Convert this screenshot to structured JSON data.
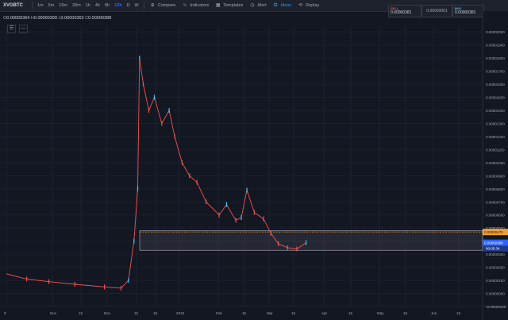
{
  "symbol": "XVGBTC",
  "timeframes": [
    "1m",
    "5m",
    "15m",
    "30m",
    "1h",
    "4h",
    "8h",
    "12h",
    "D",
    "W"
  ],
  "active_timeframe": "12h",
  "tools": {
    "compare": "Compare",
    "indicators": "Indicators",
    "templates": "Templates",
    "alert": "Alert",
    "ideas": "Ideas",
    "replay": "Replay"
  },
  "trade": {
    "sell_label": "SELL",
    "sell_price": "0.00000381",
    "spread": "0.00000001",
    "buy_label": "BUY",
    "buy_price": "0.00000381"
  },
  "legend": {
    "o_label": "O",
    "o": "0.00000364",
    "h_label": "H",
    "h": "0.00000399",
    "l_label": "L",
    "l": "0.00000363",
    "c_label": "C",
    "c": "0.00000388"
  },
  "colors": {
    "up": "#4fc3f7",
    "down": "#ef5350",
    "accent": "#2962ff",
    "resistance": "#f0a032",
    "box": "#2a2e39"
  },
  "chart_data": {
    "type": "line",
    "title": "",
    "x_ticks": [
      "9",
      "Nov",
      "15",
      "Dec",
      "15",
      "18",
      "2018",
      "Feb",
      "15",
      "Mar",
      "15",
      "Apr",
      "16",
      "May",
      "15",
      "Jun",
      "15"
    ],
    "y_ticks": [
      "0.00002000",
      "0.00001900",
      "0.00001800",
      "0.00001700",
      "0.00001600",
      "0.00001500",
      "0.00001400",
      "0.00001300",
      "0.00001200",
      "0.00001100",
      "0.00001000",
      "0.00000900",
      "0.00000800",
      "0.00000700",
      "0.00000600",
      "0.00000500",
      "0.00000400",
      "0.00000300",
      "0.00000200",
      "0.00000100",
      "0.00000000",
      "-0.00000100"
    ],
    "ylim": [
      -1e-06,
      2.05e-05
    ],
    "series": [
      {
        "x": [
          "Oct 9",
          "Oct 20",
          "Nov 1",
          "Nov 15",
          "Dec 1",
          "Dec 10",
          "Dec 14",
          "Dec 17",
          "Dec 19",
          "Dec 20",
          "Dec 22",
          "Dec 25",
          "Dec 28",
          "Jan 1",
          "Jan 5",
          "Jan 8",
          "Jan 12",
          "Jan 16",
          "Jan 20",
          "Jan 25",
          "Feb 1",
          "Feb 5",
          "Feb 10",
          "Feb 13",
          "Feb 16",
          "Feb 20",
          "Feb 25",
          "Mar 1",
          "Mar 5",
          "Mar 10",
          "Mar 15",
          "Mar 20"
        ],
        "y": [
          1.5e-06,
          1.1e-06,
          9e-07,
          7e-07,
          5e-07,
          4e-07,
          1e-06,
          4e-06,
          8e-06,
          1.8e-05,
          1.6e-05,
          1.4e-05,
          1.5e-05,
          1.3e-05,
          1.4e-05,
          1.2e-05,
          1e-05,
          9e-06,
          8.5e-06,
          7e-06,
          6e-06,
          6.8e-06,
          5.6e-06,
          5.8e-06,
          7.9e-06,
          6.2e-06,
          5.7e-06,
          4.6e-06,
          3.8e-06,
          3.5e-06,
          3.4e-06,
          3.88e-06
        ]
      }
    ],
    "resistance_level": 4.7e-06,
    "box_range": [
      3.3e-06,
      4.8e-06
    ],
    "last_price_label": "0.00000388",
    "second_label": "00:05:34",
    "resistance_label": "0.00000470"
  }
}
